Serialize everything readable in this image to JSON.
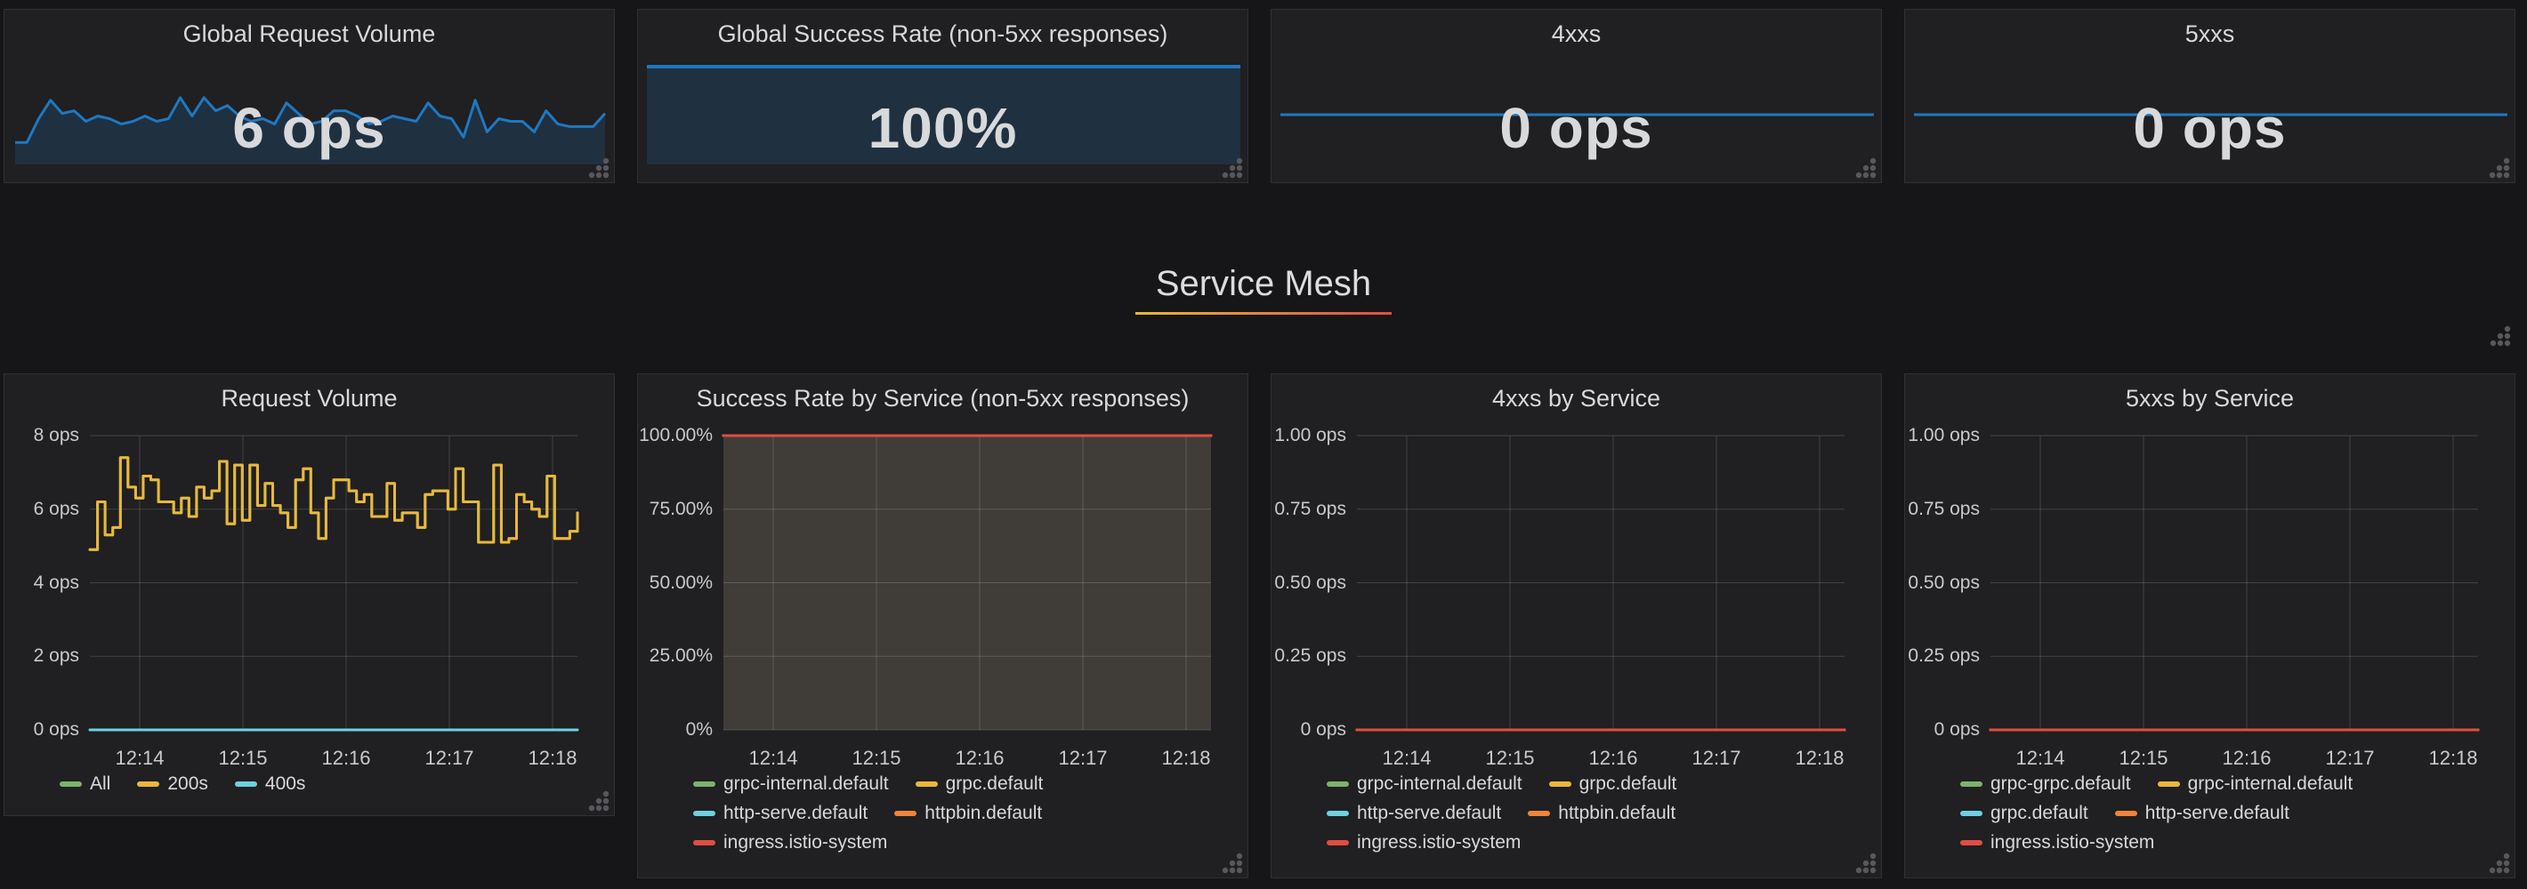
{
  "palette": {
    "green": "#7EB26D",
    "yellow": "#EAB839",
    "cyan": "#6ED0E0",
    "orange": "#EF843C",
    "red": "#E24D42",
    "blue": "#1F78C1",
    "success_fill": "#403D38",
    "grid_line": "rgba(255,255,255,0.16)",
    "row_underline_start": "#EAB839",
    "row_underline_end": "#E24D42"
  },
  "icons": {
    "resize_handle": "dot-triangle"
  },
  "row_header": {
    "title": "Service Mesh"
  },
  "stat_panels": [
    {
      "title": "Global Request Volume",
      "value": "6 ops",
      "spark": {
        "kind": "noisy",
        "values": [
          5.2,
          5.2,
          6.1,
          6.8,
          6.3,
          6.4,
          6.0,
          6.2,
          6.1,
          5.9,
          6.0,
          6.2,
          6.0,
          6.1,
          6.9,
          6.2,
          6.9,
          6.4,
          6.6,
          6.2,
          6.0,
          6.1,
          5.9,
          6.7,
          6.3,
          5.9,
          6.0,
          6.4,
          6.4,
          6.2,
          5.9,
          6.0,
          6.2,
          6.1,
          6.0,
          6.7,
          6.2,
          6.1,
          5.4,
          6.8,
          5.6,
          6.1,
          6.0,
          6.0,
          5.6,
          6.4,
          5.9,
          5.8,
          5.8,
          5.8,
          6.3
        ]
      }
    },
    {
      "title": "Global Success Rate (non-5xx responses)",
      "value": "100%",
      "spark": {
        "kind": "flat-top",
        "values": [
          100,
          100
        ]
      }
    },
    {
      "title": "4xxs",
      "value": "0 ops",
      "spark": {
        "kind": "flat-mid",
        "values": [
          0,
          0
        ]
      }
    },
    {
      "title": "5xxs",
      "value": "0 ops",
      "spark": {
        "kind": "flat-mid",
        "values": [
          0,
          0
        ]
      }
    }
  ],
  "chart_data": [
    {
      "type": "line",
      "title": "Request Volume",
      "x_ticks": [
        "12:14",
        "12:15",
        "12:16",
        "12:17",
        "12:18"
      ],
      "y_ticks": [
        "8 ops",
        "6 ops",
        "4 ops",
        "2 ops",
        "0 ops"
      ],
      "ylim": [
        0,
        8
      ],
      "grid": true,
      "legend_position": "bottom",
      "series": [
        {
          "name": "All",
          "color": "#7EB26D",
          "values": [
            4.9,
            6.2,
            5.3,
            5.5,
            7.4,
            6.6,
            6.3,
            6.9,
            6.8,
            6.2,
            6.2,
            5.9,
            6.3,
            5.8,
            6.6,
            6.3,
            6.5,
            7.3,
            5.6,
            7.2,
            5.7,
            7.2,
            6.1,
            6.7,
            6.1,
            5.9,
            5.5,
            6.8,
            7.1,
            5.9,
            5.2,
            6.3,
            6.8,
            6.8,
            6.5,
            6.2,
            6.4,
            5.8,
            5.8,
            6.7,
            5.7,
            5.9,
            5.9,
            5.5,
            6.4,
            6.5,
            6.5,
            6.0,
            7.1,
            6.2,
            6.2,
            5.1,
            5.1,
            7.2,
            5.1,
            5.2,
            6.4,
            6.2,
            6.0,
            5.8,
            6.9,
            5.2,
            5.2,
            5.4,
            5.9
          ]
        },
        {
          "name": "200s",
          "color": "#EAB839",
          "values": [
            4.9,
            6.2,
            5.3,
            5.5,
            7.4,
            6.6,
            6.3,
            6.9,
            6.8,
            6.2,
            6.2,
            5.9,
            6.3,
            5.8,
            6.6,
            6.3,
            6.5,
            7.3,
            5.6,
            7.2,
            5.7,
            7.2,
            6.1,
            6.7,
            6.1,
            5.9,
            5.5,
            6.8,
            7.1,
            5.9,
            5.2,
            6.3,
            6.8,
            6.8,
            6.5,
            6.2,
            6.4,
            5.8,
            5.8,
            6.7,
            5.7,
            5.9,
            5.9,
            5.5,
            6.4,
            6.5,
            6.5,
            6.0,
            7.1,
            6.2,
            6.2,
            5.1,
            5.1,
            7.2,
            5.1,
            5.2,
            6.4,
            6.2,
            6.0,
            5.8,
            6.9,
            5.2,
            5.2,
            5.4,
            5.9
          ]
        },
        {
          "name": "400s",
          "color": "#6ED0E0",
          "values": [
            0,
            0
          ]
        }
      ]
    },
    {
      "type": "line",
      "title": "Success Rate by Service (non-5xx responses)",
      "x_ticks": [
        "12:14",
        "12:15",
        "12:16",
        "12:17",
        "12:18"
      ],
      "y_ticks": [
        "100.00%",
        "75.00%",
        "50.00%",
        "25.00%",
        "0%"
      ],
      "ylim": [
        0,
        100
      ],
      "grid": true,
      "legend_position": "bottom",
      "fill_area": {
        "color": "#403D38",
        "from": 0,
        "to": 100
      },
      "series": [
        {
          "name": "grpc-internal.default",
          "color": "#7EB26D",
          "values": [
            100,
            100
          ]
        },
        {
          "name": "grpc.default",
          "color": "#EAB839",
          "values": [
            100,
            100
          ]
        },
        {
          "name": "http-serve.default",
          "color": "#6ED0E0",
          "values": [
            100,
            100
          ]
        },
        {
          "name": "httpbin.default",
          "color": "#EF843C",
          "values": [
            100,
            100
          ]
        },
        {
          "name": "ingress.istio-system",
          "color": "#E24D42",
          "values": [
            100,
            100
          ]
        }
      ]
    },
    {
      "type": "line",
      "title": "4xxs by Service",
      "x_ticks": [
        "12:14",
        "12:15",
        "12:16",
        "12:17",
        "12:18"
      ],
      "y_ticks": [
        "1.00 ops",
        "0.75 ops",
        "0.50 ops",
        "0.25 ops",
        "0 ops"
      ],
      "ylim": [
        0,
        1
      ],
      "grid": true,
      "legend_position": "bottom",
      "series": [
        {
          "name": "grpc-internal.default",
          "color": "#7EB26D",
          "values": [
            0,
            0
          ]
        },
        {
          "name": "grpc.default",
          "color": "#EAB839",
          "values": [
            0,
            0
          ]
        },
        {
          "name": "http-serve.default",
          "color": "#6ED0E0",
          "values": [
            0,
            0
          ]
        },
        {
          "name": "httpbin.default",
          "color": "#EF843C",
          "values": [
            0,
            0
          ]
        },
        {
          "name": "ingress.istio-system",
          "color": "#E24D42",
          "values": [
            0,
            0
          ]
        }
      ]
    },
    {
      "type": "line",
      "title": "5xxs by Service",
      "x_ticks": [
        "12:14",
        "12:15",
        "12:16",
        "12:17",
        "12:18"
      ],
      "y_ticks": [
        "1.00 ops",
        "0.75 ops",
        "0.50 ops",
        "0.25 ops",
        "0 ops"
      ],
      "ylim": [
        0,
        1
      ],
      "grid": true,
      "legend_position": "bottom",
      "series": [
        {
          "name": "grpc-grpc.default",
          "color": "#7EB26D",
          "values": [
            0,
            0
          ]
        },
        {
          "name": "grpc-internal.default",
          "color": "#EAB839",
          "values": [
            0,
            0
          ]
        },
        {
          "name": "grpc.default",
          "color": "#6ED0E0",
          "values": [
            0,
            0
          ]
        },
        {
          "name": "http-serve.default",
          "color": "#EF843C",
          "values": [
            0,
            0
          ]
        },
        {
          "name": "ingress.istio-system",
          "color": "#E24D42",
          "values": [
            0,
            0
          ]
        }
      ]
    }
  ]
}
